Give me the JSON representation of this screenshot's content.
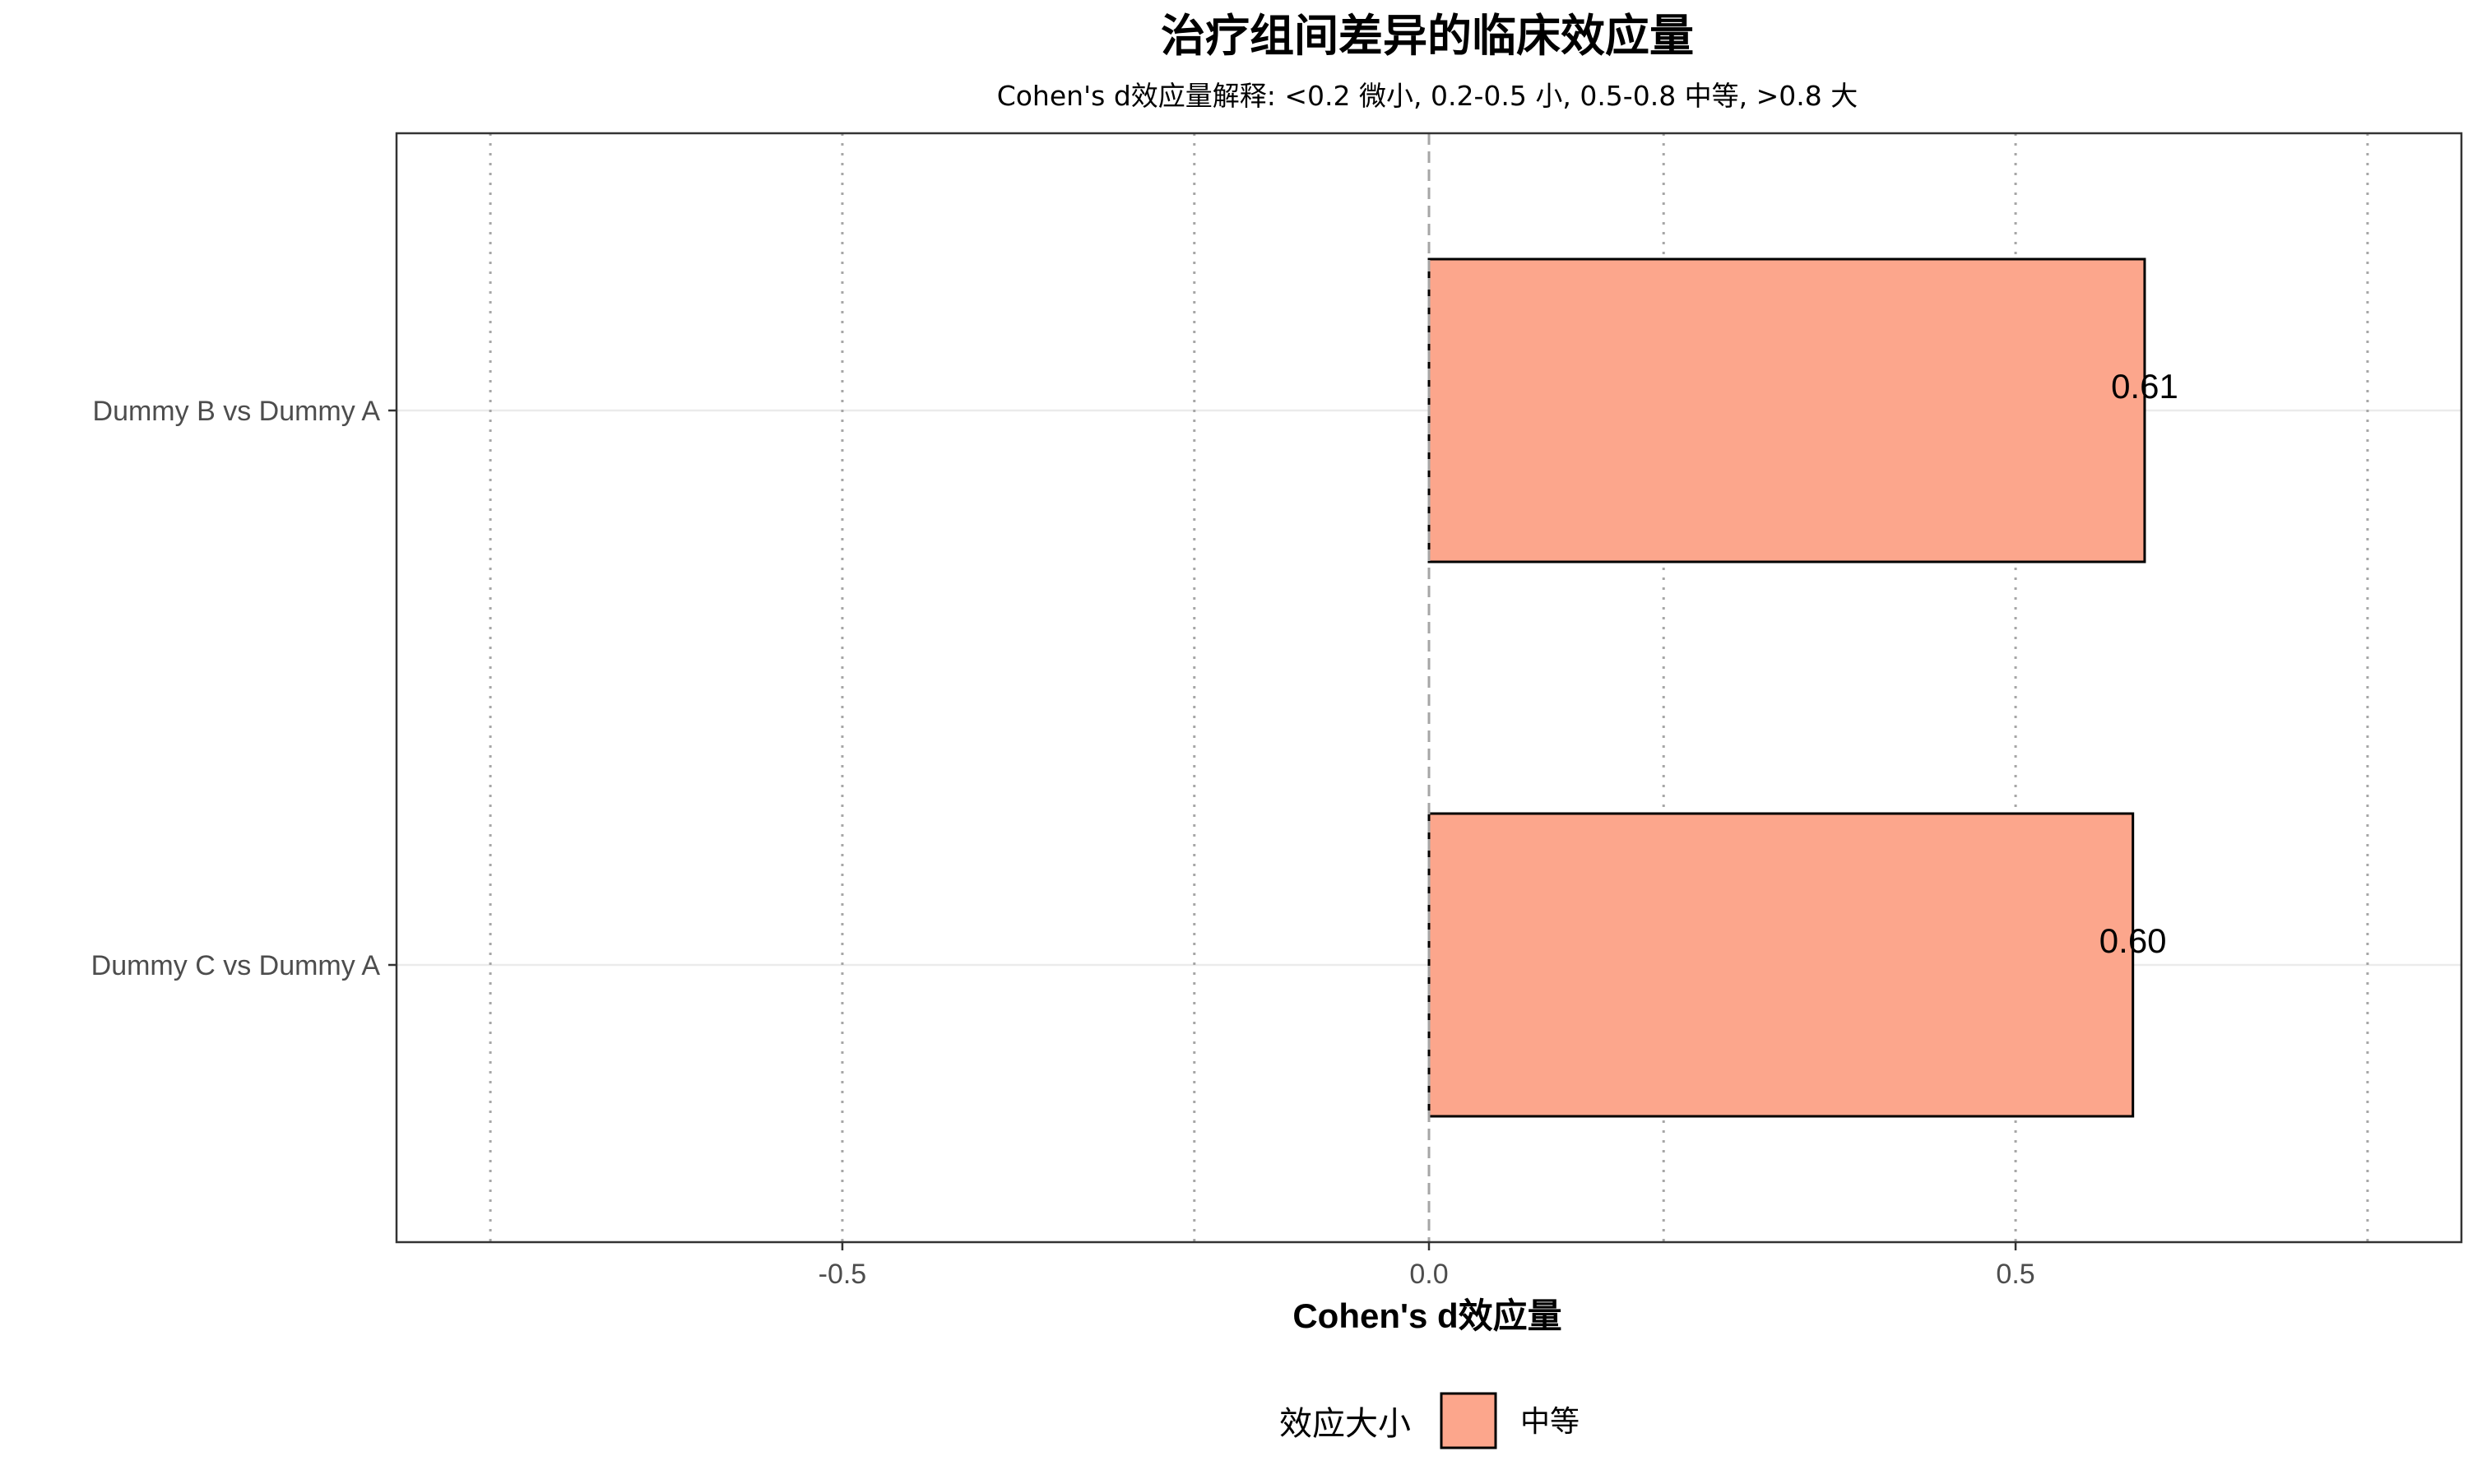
{
  "chart_data": {
    "type": "bar",
    "orientation": "horizontal",
    "title": "治疗组间差异的临床效应量",
    "subtitle": "Cohen's d效应量解释: <0.2 微小, 0.2-0.5 小, 0.5-0.8 中等, >0.8 大",
    "xlabel": "Cohen's d效应量",
    "ylabel": "",
    "xlim": [
      -0.88,
      0.88
    ],
    "x_ticks": [
      -0.5,
      0.0,
      0.5
    ],
    "x_tick_labels": [
      "-0.5",
      "0.0",
      "0.5"
    ],
    "reference_lines": [
      -0.8,
      -0.5,
      -0.2,
      0.2,
      0.5,
      0.8
    ],
    "zero_line": 0.0,
    "categories": [
      "Dummy B vs Dummy A",
      "Dummy C vs Dummy A"
    ],
    "values": [
      0.61,
      0.6
    ],
    "value_labels": [
      "0.61",
      "0.60"
    ],
    "bar_categories": [
      "中等",
      "中等"
    ],
    "grid": true,
    "legend": {
      "position": "bottom",
      "title": "效应大小",
      "items": [
        {
          "label": "中等",
          "color": "#FCA68C"
        }
      ]
    },
    "colors": {
      "bar_fill": "#FCA68C",
      "bar_stroke": "#000000",
      "reference_line": "#a6a6a6",
      "grid": "#ebebeb",
      "panel_border": "#333333"
    }
  }
}
